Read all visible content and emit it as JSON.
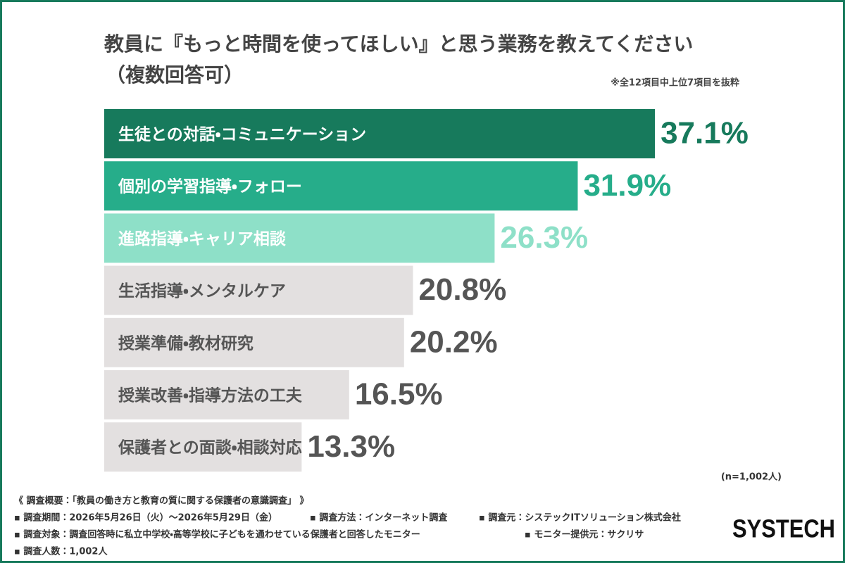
{
  "chart_data": {
    "type": "bar",
    "orientation": "horizontal",
    "title": "教員に『もっと時間を使ってほしい』と思う業務を教えてください",
    "subtitle": "（複数回答可）",
    "annotation": "※全12項目中上位7項目を抜粋",
    "sample_note": "(n=1,002人)",
    "categories": [
      "生徒との対話・コミュニケーション",
      "個別の学習指導・フォロー",
      "進路指導・キャリア相談",
      "生活指導・メンタルケア",
      "授業準備・教材研究",
      "授業改善・指導方法の工夫",
      "保護者との面談・相談対応"
    ],
    "values": [
      37.1,
      31.9,
      26.3,
      20.8,
      20.2,
      16.5,
      13.3
    ],
    "value_labels": [
      "37.1%",
      "31.9%",
      "26.3%",
      "20.8%",
      "20.2%",
      "16.5%",
      "13.3%"
    ],
    "colors": [
      "#177a5c",
      "#26ad8a",
      "#8ee0c8",
      "#e3e0e0",
      "#e3e0e0",
      "#e3e0e0",
      "#e3e0e0"
    ],
    "category_text_colors": [
      "#ffffff",
      "#ffffff",
      "#ffffff",
      "#555555",
      "#555555",
      "#555555",
      "#555555"
    ],
    "value_label_colors": [
      "#177a5c",
      "#26ad8a",
      "#8ee0c8",
      "#555555",
      "#555555",
      "#555555",
      "#555555"
    ]
  },
  "footer": {
    "heading": "《 調査概要：「教員の働き方と教育の質に関する保護者の意識調査」 》",
    "items": [
      "▪ 調査期間：2026年5月26日（火）〜2026年5月29日（金）",
      "▪ 調査方法：インターネット調査",
      "▪ 調査元：システックITソリューション株式会社",
      "▪ 調査対象：調査回答時に私立中学校・高等学校に子どもを通わせている保護者と回答したモニター",
      "▪ モニター提供元：サクリサ",
      "▪ 調査人数：1,002人"
    ],
    "logo": "SYSTECH"
  }
}
